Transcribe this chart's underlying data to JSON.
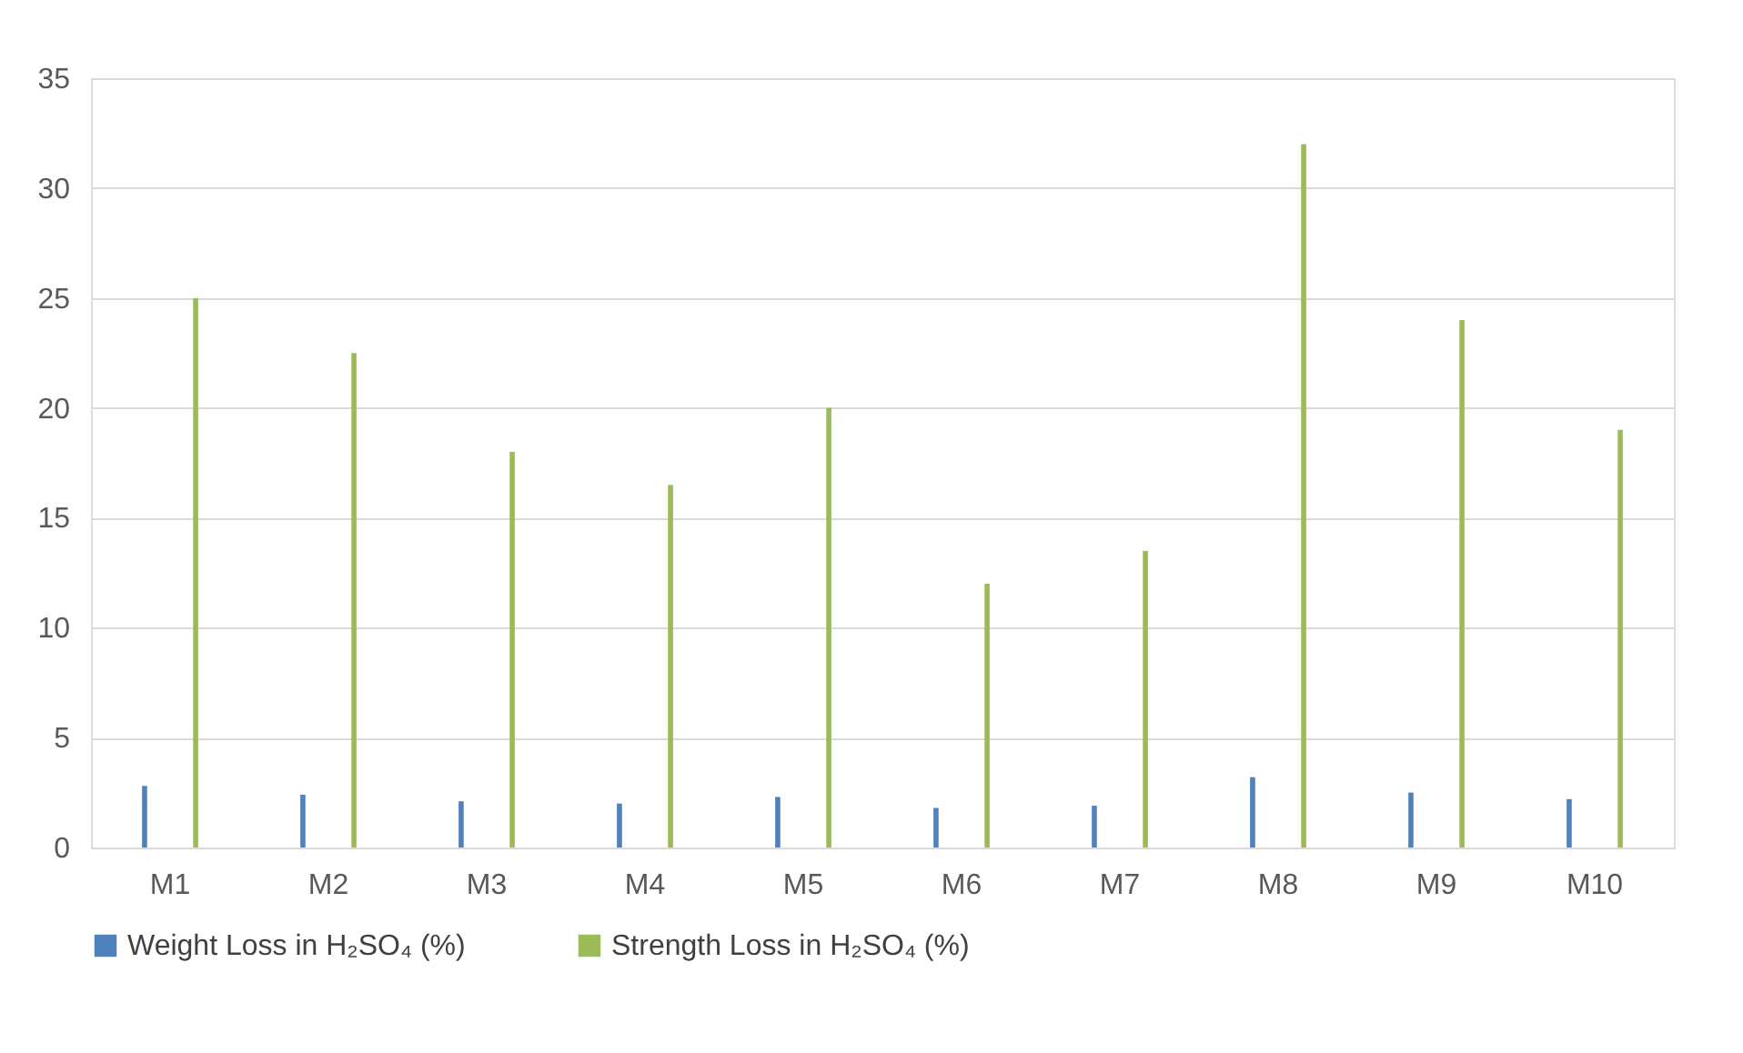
{
  "chart_data": {
    "type": "bar",
    "categories": [
      "M1",
      "M2",
      "M3",
      "M4",
      "M5",
      "M6",
      "M7",
      "M8",
      "M9",
      "M10"
    ],
    "series": [
      {
        "name": "Weight Loss in H₂SO₄ (%)",
        "color": "#4f81bd",
        "values": [
          2.8,
          2.4,
          2.1,
          2.0,
          2.3,
          1.8,
          1.9,
          3.2,
          2.5,
          2.2
        ]
      },
      {
        "name": "Strength Loss  in H₂SO₄ (%)",
        "color": "#9bbb59",
        "values": [
          25,
          22.5,
          18,
          16.5,
          20,
          12,
          13.5,
          32,
          24,
          19
        ]
      }
    ],
    "ylim": [
      0,
      35
    ],
    "yticks": [
      0,
      5,
      10,
      15,
      20,
      25,
      30,
      35
    ],
    "grid": "y",
    "legend": "bottom"
  }
}
